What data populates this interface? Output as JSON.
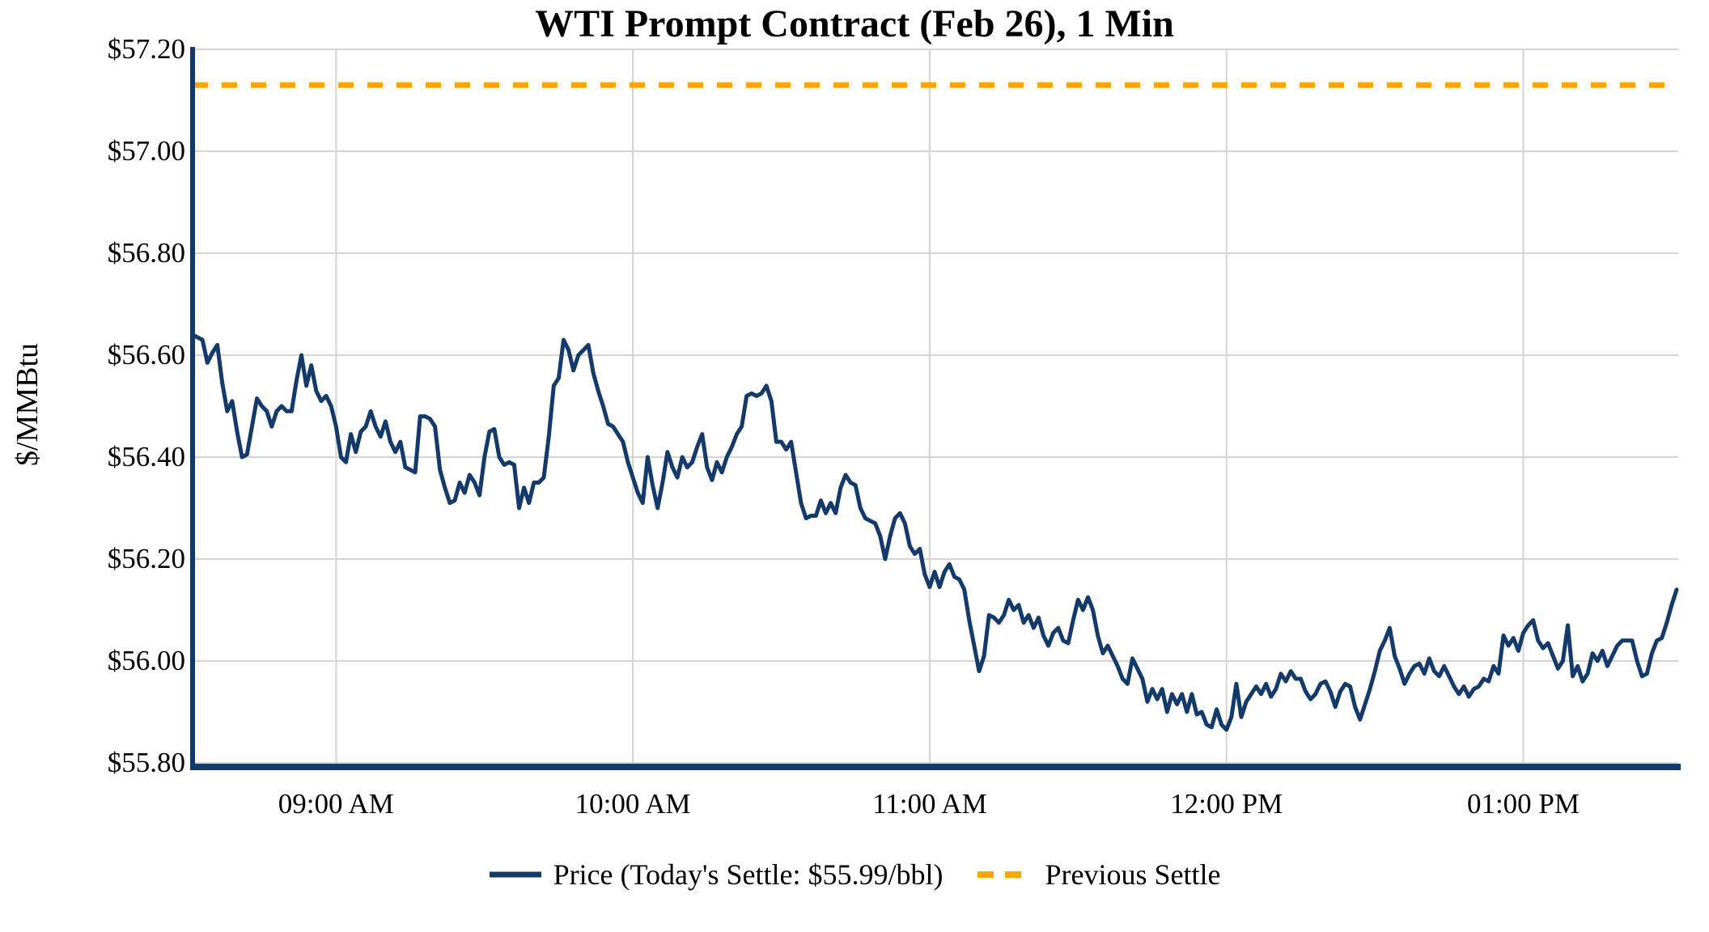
{
  "title": "WTI Prompt Contract (Feb 26), 1 Min",
  "y_axis_label": "$/MMBtu",
  "legend": {
    "price_label": "Price (Today's Settle: $55.99/bbl)",
    "previous_settle_label": "Previous Settle"
  },
  "colors": {
    "price_line": "#133A6B",
    "previous_settle_line": "#FFA500",
    "gridline": "#D4D4D4",
    "axis": "#133A6B",
    "text": "#000000",
    "background": "#FFFFFF"
  },
  "chart_data": {
    "type": "line",
    "title": "WTI Prompt Contract (Feb 26), 1 Min",
    "xlabel": "",
    "ylabel": "$/MMBtu",
    "ylim": [
      55.8,
      57.2
    ],
    "grid": true,
    "legend_position": "bottom",
    "y_ticks": [
      {
        "label": "$57.20",
        "value": 57.2
      },
      {
        "label": "$57.00",
        "value": 57.0
      },
      {
        "label": "$56.80",
        "value": 56.8
      },
      {
        "label": "$56.60",
        "value": 56.6
      },
      {
        "label": "$56.40",
        "value": 56.4
      },
      {
        "label": "$56.20",
        "value": 56.2
      },
      {
        "label": "$56.00",
        "value": 56.0
      },
      {
        "label": "$55.80",
        "value": 55.8
      }
    ],
    "x_ticks": [
      {
        "label": "09:00 AM",
        "minute": 29
      },
      {
        "label": "10:00 AM",
        "minute": 89
      },
      {
        "label": "11:00 AM",
        "minute": 149
      },
      {
        "label": "12:00 PM",
        "minute": 209
      },
      {
        "label": "01:00 PM",
        "minute": 269
      }
    ],
    "previous_settle": 57.13,
    "todays_settle": 55.99,
    "series": [
      {
        "name": "Price",
        "start_time": "08:31 AM",
        "end_time": "01:31 PM",
        "interval_minutes": 1,
        "values": [
          56.64,
          56.635,
          56.63,
          56.585,
          56.605,
          56.62,
          56.545,
          56.49,
          56.51,
          56.45,
          56.4,
          56.405,
          56.46,
          56.515,
          56.5,
          56.49,
          56.46,
          56.49,
          56.5,
          56.49,
          56.49,
          56.55,
          56.6,
          56.54,
          56.58,
          56.53,
          56.51,
          56.52,
          56.5,
          56.46,
          56.4,
          56.39,
          56.445,
          56.41,
          56.45,
          56.46,
          56.49,
          56.46,
          56.44,
          56.47,
          56.43,
          56.41,
          56.43,
          56.38,
          56.375,
          56.37,
          56.48,
          56.48,
          56.475,
          56.46,
          56.375,
          56.34,
          56.31,
          56.315,
          56.35,
          56.33,
          56.365,
          56.35,
          56.325,
          56.4,
          56.45,
          56.455,
          56.4,
          56.385,
          56.39,
          56.385,
          56.3,
          56.34,
          56.31,
          56.35,
          56.35,
          56.36,
          56.44,
          56.54,
          56.555,
          56.63,
          56.61,
          56.57,
          56.6,
          56.61,
          56.62,
          56.565,
          56.53,
          56.5,
          56.465,
          56.46,
          56.445,
          56.43,
          56.39,
          56.36,
          56.33,
          56.31,
          56.4,
          56.345,
          56.3,
          56.35,
          56.41,
          56.38,
          56.36,
          56.4,
          56.38,
          56.39,
          56.42,
          56.445,
          56.38,
          56.355,
          56.39,
          56.37,
          56.4,
          56.42,
          56.445,
          56.46,
          56.52,
          56.525,
          56.52,
          56.525,
          56.54,
          56.51,
          56.43,
          56.43,
          56.415,
          56.43,
          56.37,
          56.31,
          56.28,
          56.285,
          56.285,
          56.315,
          56.29,
          56.31,
          56.29,
          56.34,
          56.365,
          56.35,
          56.345,
          56.3,
          56.28,
          56.275,
          56.27,
          56.245,
          56.2,
          56.245,
          56.28,
          56.29,
          56.27,
          56.225,
          56.21,
          56.22,
          56.17,
          56.145,
          56.175,
          56.145,
          56.175,
          56.19,
          56.165,
          56.16,
          56.14,
          56.08,
          56.03,
          55.98,
          56.01,
          56.09,
          56.085,
          56.075,
          56.09,
          56.12,
          56.1,
          56.11,
          56.075,
          56.09,
          56.065,
          56.085,
          56.05,
          56.03,
          56.055,
          56.065,
          56.04,
          56.035,
          56.08,
          56.12,
          56.1,
          56.125,
          56.1,
          56.05,
          56.015,
          56.03,
          56.01,
          55.99,
          55.965,
          55.955,
          56.005,
          55.985,
          55.965,
          55.92,
          55.945,
          55.925,
          55.945,
          55.9,
          55.935,
          55.915,
          55.935,
          55.9,
          55.935,
          55.895,
          55.9,
          55.875,
          55.87,
          55.905,
          55.875,
          55.865,
          55.89,
          55.955,
          55.89,
          55.92,
          55.935,
          55.95,
          55.935,
          55.955,
          55.93,
          55.945,
          55.975,
          55.96,
          55.98,
          55.965,
          55.965,
          55.94,
          55.925,
          55.935,
          55.955,
          55.96,
          55.94,
          55.91,
          55.94,
          55.955,
          55.95,
          55.91,
          55.885,
          55.915,
          55.945,
          55.98,
          56.02,
          56.04,
          56.065,
          56.01,
          55.985,
          55.955,
          55.975,
          55.99,
          55.995,
          55.975,
          56.005,
          55.98,
          55.97,
          55.99,
          55.97,
          55.95,
          55.935,
          55.95,
          55.93,
          55.945,
          55.95,
          55.965,
          55.96,
          55.99,
          55.975,
          56.05,
          56.03,
          56.045,
          56.02,
          56.055,
          56.07,
          56.08,
          56.04,
          56.025,
          56.035,
          56.01,
          55.985,
          56.0,
          56.07,
          55.97,
          55.99,
          55.96,
          55.975,
          56.015,
          56.0,
          56.02,
          55.99,
          56.01,
          56.03,
          56.04,
          56.04,
          56.04,
          56.0,
          55.97,
          55.975,
          56.015,
          56.04,
          56.045,
          56.075,
          56.11,
          56.14
        ]
      },
      {
        "name": "Previous Settle",
        "style": "dashed",
        "value": 57.13
      }
    ]
  }
}
